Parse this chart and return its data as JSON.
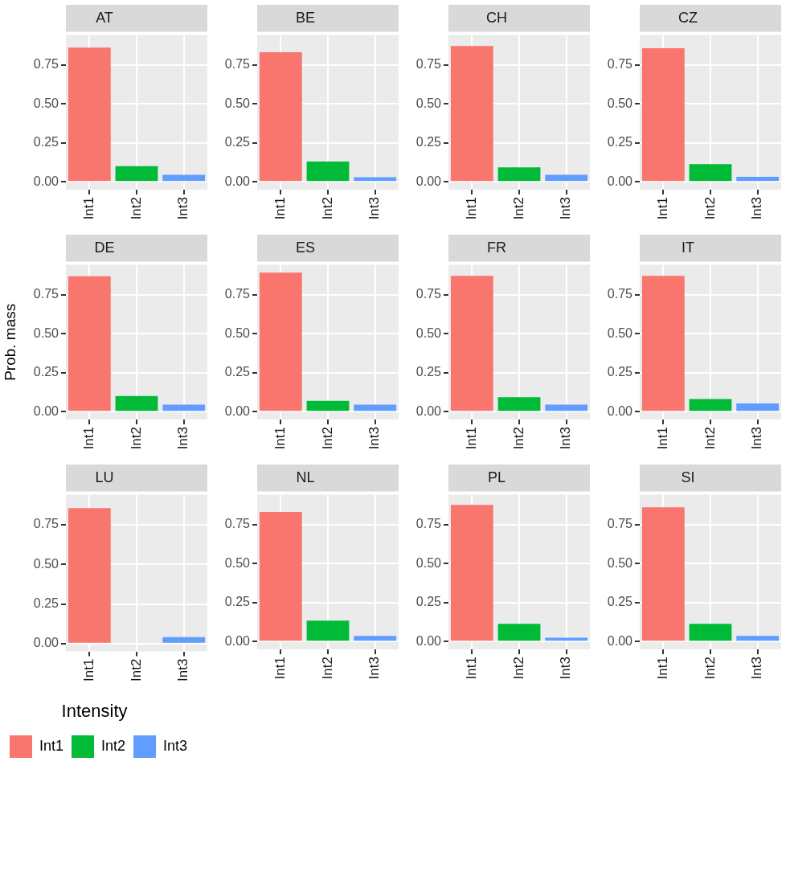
{
  "chart_data": [
    {
      "type": "bar",
      "title": "AT",
      "categories": [
        "Int1",
        "Int2",
        "Int3"
      ],
      "values": [
        0.86,
        0.1,
        0.045
      ],
      "colors": [
        "#f8766d",
        "#00ba38",
        "#619cff"
      ],
      "ylim": [
        -0.05,
        0.94
      ],
      "yticks": [
        {
          "value": 0,
          "label": "0.00"
        },
        {
          "value": 0.25,
          "label": "0.25"
        },
        {
          "value": 0.5,
          "label": "0.50"
        },
        {
          "value": 0.75,
          "label": "0.75"
        }
      ],
      "grid": true
    },
    {
      "type": "bar",
      "title": "BE",
      "categories": [
        "Int1",
        "Int2",
        "Int3"
      ],
      "values": [
        0.83,
        0.13,
        0.03
      ],
      "colors": [
        "#f8766d",
        "#00ba38",
        "#619cff"
      ],
      "ylim": [
        -0.05,
        0.94
      ],
      "yticks": [
        {
          "value": 0,
          "label": "0.00"
        },
        {
          "value": 0.25,
          "label": "0.25"
        },
        {
          "value": 0.5,
          "label": "0.50"
        },
        {
          "value": 0.75,
          "label": "0.75"
        }
      ],
      "grid": true
    },
    {
      "type": "bar",
      "title": "CH",
      "categories": [
        "Int1",
        "Int2",
        "Int3"
      ],
      "values": [
        0.87,
        0.093,
        0.045
      ],
      "colors": [
        "#f8766d",
        "#00ba38",
        "#619cff"
      ],
      "ylim": [
        -0.05,
        0.94
      ],
      "yticks": [
        {
          "value": 0,
          "label": "0.00"
        },
        {
          "value": 0.25,
          "label": "0.25"
        },
        {
          "value": 0.5,
          "label": "0.50"
        },
        {
          "value": 0.75,
          "label": "0.75"
        }
      ],
      "grid": true
    },
    {
      "type": "bar",
      "title": "CZ",
      "categories": [
        "Int1",
        "Int2",
        "Int3"
      ],
      "values": [
        0.855,
        0.113,
        0.032
      ],
      "colors": [
        "#f8766d",
        "#00ba38",
        "#619cff"
      ],
      "ylim": [
        -0.05,
        0.94
      ],
      "yticks": [
        {
          "value": 0,
          "label": "0.00"
        },
        {
          "value": 0.25,
          "label": "0.25"
        },
        {
          "value": 0.5,
          "label": "0.50"
        },
        {
          "value": 0.75,
          "label": "0.75"
        }
      ],
      "grid": true
    },
    {
      "type": "bar",
      "title": "DE",
      "ylabel": "Prob. mass",
      "categories": [
        "Int1",
        "Int2",
        "Int3"
      ],
      "values": [
        0.867,
        0.1,
        0.045
      ],
      "colors": [
        "#f8766d",
        "#00ba38",
        "#619cff"
      ],
      "ylim": [
        -0.05,
        0.94
      ],
      "yticks": [
        {
          "value": 0,
          "label": "0.00"
        },
        {
          "value": 0.25,
          "label": "0.25"
        },
        {
          "value": 0.5,
          "label": "0.50"
        },
        {
          "value": 0.75,
          "label": "0.75"
        }
      ],
      "grid": true
    },
    {
      "type": "bar",
      "title": "ES",
      "categories": [
        "Int1",
        "Int2",
        "Int3"
      ],
      "values": [
        0.89,
        0.069,
        0.045
      ],
      "colors": [
        "#f8766d",
        "#00ba38",
        "#619cff"
      ],
      "ylim": [
        -0.05,
        0.94
      ],
      "yticks": [
        {
          "value": 0,
          "label": "0.00"
        },
        {
          "value": 0.25,
          "label": "0.25"
        },
        {
          "value": 0.5,
          "label": "0.50"
        },
        {
          "value": 0.75,
          "label": "0.75"
        }
      ],
      "grid": true
    },
    {
      "type": "bar",
      "title": "FR",
      "categories": [
        "Int1",
        "Int2",
        "Int3"
      ],
      "values": [
        0.87,
        0.093,
        0.045
      ],
      "colors": [
        "#f8766d",
        "#00ba38",
        "#619cff"
      ],
      "ylim": [
        -0.05,
        0.94
      ],
      "yticks": [
        {
          "value": 0,
          "label": "0.00"
        },
        {
          "value": 0.25,
          "label": "0.25"
        },
        {
          "value": 0.5,
          "label": "0.50"
        },
        {
          "value": 0.75,
          "label": "0.75"
        }
      ],
      "grid": true
    },
    {
      "type": "bar",
      "title": "IT",
      "categories": [
        "Int1",
        "Int2",
        "Int3"
      ],
      "values": [
        0.87,
        0.081,
        0.053
      ],
      "colors": [
        "#f8766d",
        "#00ba38",
        "#619cff"
      ],
      "ylim": [
        -0.05,
        0.94
      ],
      "yticks": [
        {
          "value": 0,
          "label": "0.00"
        },
        {
          "value": 0.25,
          "label": "0.25"
        },
        {
          "value": 0.5,
          "label": "0.50"
        },
        {
          "value": 0.75,
          "label": "0.75"
        }
      ],
      "grid": true
    },
    {
      "type": "bar",
      "title": "LU",
      "categories": [
        "Int1",
        "Int2",
        "Int3"
      ],
      "stacked": true,
      "series": [
        {
          "name": "Int1",
          "color": "#f8766d",
          "values": [
            0.855,
            null,
            null
          ]
        },
        {
          "name": "Int2",
          "color": "#00ba38",
          "values": [
            null,
            null,
            null
          ]
        },
        {
          "name": "Int3",
          "color": "#619cff",
          "values": [
            null,
            null,
            0.04
          ]
        }
      ],
      "ylim": [
        -0.05,
        0.94
      ],
      "yticks": [
        {
          "value": 0,
          "label": "0.00"
        },
        {
          "value": 0.25,
          "label": "0.25"
        },
        {
          "value": 0.5,
          "label": "0.50"
        },
        {
          "value": 0.75,
          "label": "0.75"
        }
      ],
      "grid": true,
      "legend": "bottom left",
      "legend_title": "Intensity"
    },
    {
      "type": "bar",
      "title": "NL",
      "categories": [
        "Int1",
        "Int2",
        "Int3"
      ],
      "values": [
        0.83,
        0.134,
        0.036
      ],
      "colors": [
        "#f8766d",
        "#00ba38",
        "#619cff"
      ],
      "ylim": [
        -0.05,
        0.94
      ],
      "yticks": [
        {
          "value": 0,
          "label": "0.00"
        },
        {
          "value": 0.25,
          "label": "0.25"
        },
        {
          "value": 0.5,
          "label": "0.50"
        },
        {
          "value": 0.75,
          "label": "0.75"
        }
      ],
      "grid": true
    },
    {
      "type": "bar",
      "title": "PL",
      "categories": [
        "Int1",
        "Int2",
        "Int3"
      ],
      "values": [
        0.875,
        0.113,
        0.024
      ],
      "colors": [
        "#f8766d",
        "#00ba38",
        "#619cff"
      ],
      "ylim": [
        -0.05,
        0.94
      ],
      "yticks": [
        {
          "value": 0,
          "label": "0.00"
        },
        {
          "value": 0.25,
          "label": "0.25"
        },
        {
          "value": 0.5,
          "label": "0.50"
        },
        {
          "value": 0.75,
          "label": "0.75"
        }
      ],
      "grid": true
    },
    {
      "type": "bar",
      "title": "SI",
      "categories": [
        "Int1",
        "Int2",
        "Int3"
      ],
      "values": [
        0.86,
        0.113,
        0.036
      ],
      "colors": [
        "#f8766d",
        "#00ba38",
        "#619cff"
      ],
      "ylim": [
        -0.05,
        0.94
      ],
      "yticks": [
        {
          "value": 0,
          "label": "0.00"
        },
        {
          "value": 0.25,
          "label": "0.25"
        },
        {
          "value": 0.5,
          "label": "0.50"
        },
        {
          "value": 0.75,
          "label": "0.75"
        }
      ],
      "grid": true
    }
  ]
}
